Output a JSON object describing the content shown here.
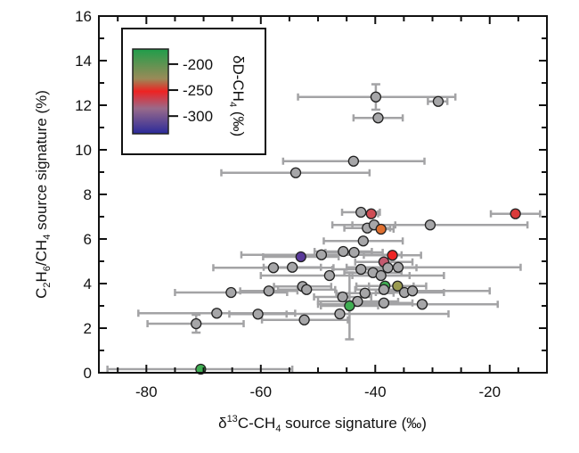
{
  "chart_data": {
    "type": "scatter",
    "xlabel_prefix": "δ",
    "xlabel_sup": "13",
    "xlabel_main": "C-CH",
    "xlabel_sub": "4",
    "xlabel_suffix": " source signature (‰)",
    "ylabel_parts": [
      "C",
      "2",
      "H",
      "6",
      "/CH",
      "4",
      " source signature (%)"
    ],
    "xlim": [
      -88.3,
      -10
    ],
    "ylim": [
      0,
      16
    ],
    "xticks": [
      -80,
      -60,
      -40,
      -20
    ],
    "xminor": 5,
    "yticks": [
      0,
      2,
      4,
      6,
      8,
      10,
      12,
      14,
      16
    ],
    "yminor": 1,
    "grid": false,
    "colorbar": {
      "title_main": "δD-CH",
      "title_sub": "4",
      "title_suffix": " (‰)",
      "ticks": [
        "-200",
        "-250",
        "-300"
      ],
      "tick_values": [
        -200,
        -250,
        -300
      ],
      "range": [
        -334,
        -171
      ],
      "colors": {
        "top": "#1f9e4a",
        "upper": "#9a8a58",
        "mid": "#ee2222",
        "lower": "#9a6a8a",
        "bottom": "#2a2a9a"
      },
      "placement": "top-left"
    },
    "default_color": "#a6a6a8",
    "points": [
      {
        "x": -39.9,
        "y": 12.37,
        "xlo": -53.5,
        "xhi": -26.0,
        "yerr": 0.57
      },
      {
        "x": -29.0,
        "y": 12.17,
        "xlo": -30.8,
        "xhi": -27.4
      },
      {
        "x": -39.5,
        "y": 11.43,
        "xlo": -43.8,
        "xhi": -35.2
      },
      {
        "x": -43.8,
        "y": 9.49,
        "xlo": -56.1,
        "xhi": -31.4
      },
      {
        "x": -53.9,
        "y": 8.97,
        "xlo": -66.9,
        "xhi": -41.0
      },
      {
        "x": -42.5,
        "y": 7.2,
        "xlo": -45.8,
        "xhi": -39.2
      },
      {
        "x": -40.7,
        "y": 7.13,
        "xlo": -42.5,
        "xhi": -39.5,
        "color": "#cf4d55"
      },
      {
        "x": -15.5,
        "y": 7.13,
        "xlo": -19.8,
        "xhi": -11.2,
        "color": "#d93a3a"
      },
      {
        "x": -30.4,
        "y": 6.63,
        "xlo": -47.5,
        "xhi": -13.4
      },
      {
        "x": -41.4,
        "y": 6.49,
        "xlo": -45.4,
        "xhi": -37.4
      },
      {
        "x": -40.2,
        "y": 6.63,
        "xlo": -44.0,
        "xhi": -36.5
      },
      {
        "x": -39.0,
        "y": 6.44,
        "xlo": -41.5,
        "xhi": -36.8,
        "color": "#e07030"
      },
      {
        "x": -42.1,
        "y": 5.91,
        "xlo": -49.0,
        "xhi": -35.2
      },
      {
        "x": -53.0,
        "y": 5.2,
        "xlo": -59.6,
        "xhi": -46.4,
        "color": "#5a3a9a"
      },
      {
        "x": -49.4,
        "y": 5.29,
        "xlo": -63.4,
        "xhi": -35.4
      },
      {
        "x": -45.6,
        "y": 5.44,
        "xlo": -50.6,
        "xhi": -40.6
      },
      {
        "x": -43.7,
        "y": 5.4,
        "xlo": -48.7,
        "xhi": -38.7
      },
      {
        "x": -37.0,
        "y": 5.27,
        "xlo": -42.0,
        "xhi": -32.0,
        "color": "#ee2525"
      },
      {
        "x": -38.5,
        "y": 4.97,
        "xlo": -43.5,
        "xhi": -33.5,
        "color": "#c45a70"
      },
      {
        "x": -57.8,
        "y": 4.71,
        "xlo": -68.3,
        "xhi": -47.3
      },
      {
        "x": -54.5,
        "y": 4.73,
        "xlo": -59.5,
        "xhi": -49.5
      },
      {
        "x": -42.5,
        "y": 4.64,
        "xlo": -47.5,
        "xhi": -37.5
      },
      {
        "x": -40.4,
        "y": 4.49,
        "xlo": -45.4,
        "xhi": -35.4
      },
      {
        "x": -37.8,
        "y": 4.71,
        "xlo": -42.8,
        "xhi": -32.8
      },
      {
        "x": -36.0,
        "y": 4.73,
        "xlo": -45.0,
        "xhi": -14.6
      },
      {
        "x": -39.0,
        "y": 4.36,
        "xlo": -44.0,
        "xhi": -34.0
      },
      {
        "x": -48.0,
        "y": 4.36,
        "xlo": -60.0,
        "xhi": -28.0
      },
      {
        "x": -52.7,
        "y": 3.87,
        "xlo": -57.7,
        "xhi": -47.7
      },
      {
        "x": -52.0,
        "y": 3.73,
        "xlo": -57.0,
        "xhi": -47.0
      },
      {
        "x": -38.3,
        "y": 3.89,
        "xlo": -43.3,
        "xhi": -33.3,
        "color": "#3fae52"
      },
      {
        "x": -36.1,
        "y": 3.89,
        "xlo": -41.1,
        "xhi": -31.1,
        "color": "#9a9a50"
      },
      {
        "x": -38.5,
        "y": 3.73,
        "xlo": -43.5,
        "xhi": -33.5
      },
      {
        "x": -34.9,
        "y": 3.6,
        "xlo": -39.9,
        "xhi": -28.0
      },
      {
        "x": -33.5,
        "y": 3.67,
        "xlo": -38.5,
        "xhi": -20.0
      },
      {
        "x": -65.2,
        "y": 3.6,
        "xlo": -75.0,
        "xhi": -55.4
      },
      {
        "x": -58.6,
        "y": 3.67,
        "xlo": -63.6,
        "xhi": -53.6
      },
      {
        "x": -41.8,
        "y": 3.57,
        "xlo": -46.8,
        "xhi": -36.8
      },
      {
        "x": -45.7,
        "y": 3.4,
        "xlo": -50.7,
        "xhi": -40.7
      },
      {
        "x": -43.1,
        "y": 3.2,
        "xlo": -50.0,
        "xhi": -36.0
      },
      {
        "x": -44.5,
        "y": 3.0,
        "xlo": -49.5,
        "xhi": -39.5,
        "yerr": 1.5,
        "color": "#3fae52"
      },
      {
        "x": -38.5,
        "y": 3.13,
        "xlo": -43.5,
        "xhi": -33.5
      },
      {
        "x": -31.8,
        "y": 3.07,
        "xlo": -50.0,
        "xhi": -18.6
      },
      {
        "x": -67.7,
        "y": 2.67,
        "xlo": -81.4,
        "xhi": -54.0
      },
      {
        "x": -60.5,
        "y": 2.63,
        "xlo": -65.5,
        "xhi": -55.5
      },
      {
        "x": -46.2,
        "y": 2.64,
        "xlo": -60.0,
        "xhi": -27.2
      },
      {
        "x": -52.4,
        "y": 2.37,
        "xlo": -59.8,
        "xhi": -44.8
      },
      {
        "x": -71.3,
        "y": 2.2,
        "xlo": -79.8,
        "xhi": -63.0,
        "yerr": 0.4
      },
      {
        "x": -70.5,
        "y": 0.16,
        "xlo": -86.8,
        "xhi": -54.5,
        "color": "#3fae52"
      }
    ]
  }
}
